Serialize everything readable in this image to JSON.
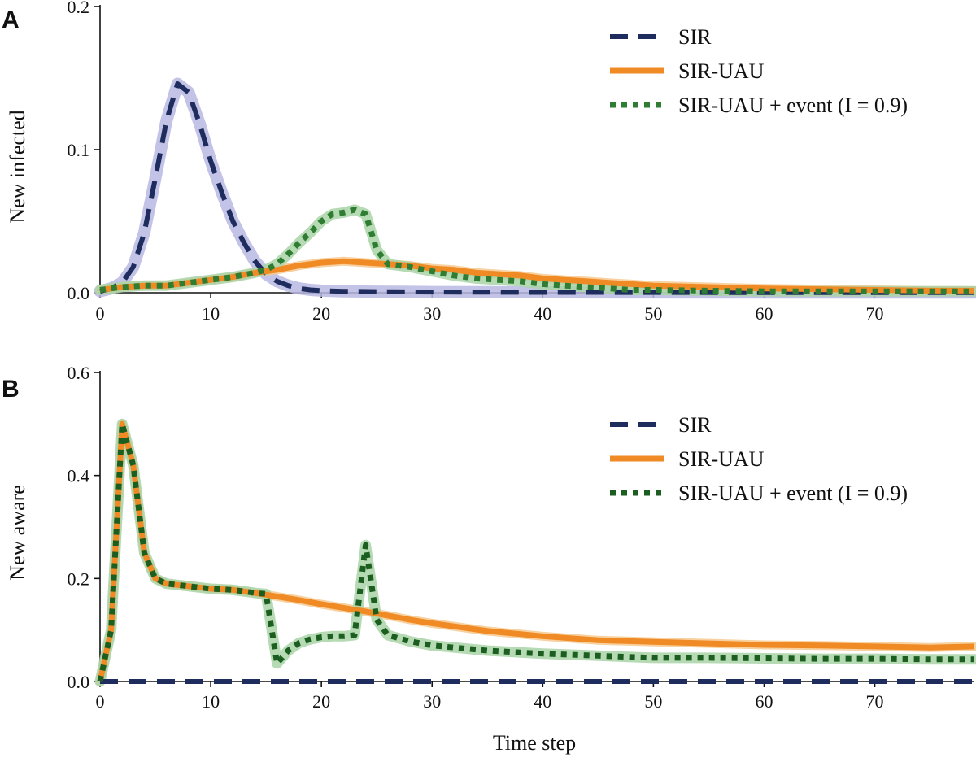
{
  "x_axis_title": "Time step",
  "colors": {
    "sir": "#1f2d5e",
    "sir_band": "#b9b9e3",
    "uau": "#f08a24",
    "uau_band": "#f6c98f",
    "event": "#2e7d32",
    "event_band": "#a9d4a7",
    "aware_event": "#1b5e20"
  },
  "chart_data": [
    {
      "panel": "A",
      "type": "line",
      "ylabel": "New infected",
      "xlim": [
        0,
        79
      ],
      "ylim": [
        0,
        0.2
      ],
      "xticks": [
        0,
        10,
        20,
        30,
        40,
        50,
        60,
        70
      ],
      "yticks": [
        0.0,
        0.1,
        0.2
      ],
      "ytick_labels": [
        "0.0",
        "0.1",
        "0.2"
      ],
      "legend": {
        "position": "top-right"
      },
      "series": [
        {
          "name": "SIR",
          "style": "dashed",
          "x": [
            0,
            1,
            2,
            3,
            4,
            5,
            6,
            7,
            8,
            9,
            10,
            11,
            12,
            13,
            14,
            15,
            16,
            17,
            18,
            19,
            20,
            22,
            25,
            30,
            35,
            40,
            50,
            60,
            70,
            79
          ],
          "y": [
            0.001,
            0.003,
            0.007,
            0.018,
            0.042,
            0.08,
            0.12,
            0.146,
            0.14,
            0.118,
            0.092,
            0.07,
            0.05,
            0.035,
            0.022,
            0.013,
            0.008,
            0.005,
            0.003,
            0.002,
            0.0015,
            0.001,
            0.0008,
            0.0005,
            0.0004,
            0.0003,
            0.0002,
            0.0001,
            0.0001,
            0.0001
          ]
        },
        {
          "name": "SIR-UAU",
          "style": "solid",
          "x": [
            0,
            2,
            4,
            6,
            8,
            10,
            12,
            14,
            16,
            18,
            20,
            22,
            24,
            26,
            28,
            30,
            32,
            34,
            36,
            38,
            40,
            42,
            44,
            46,
            48,
            50,
            55,
            60,
            65,
            70,
            75,
            79
          ],
          "y": [
            0.002,
            0.004,
            0.005,
            0.005,
            0.007,
            0.009,
            0.011,
            0.014,
            0.016,
            0.019,
            0.021,
            0.022,
            0.021,
            0.02,
            0.019,
            0.017,
            0.016,
            0.014,
            0.013,
            0.012,
            0.01,
            0.009,
            0.008,
            0.007,
            0.006,
            0.005,
            0.004,
            0.003,
            0.0025,
            0.002,
            0.0015,
            0.0015
          ]
        },
        {
          "name": "SIR-UAU + event (I = 0.9)",
          "style": "dotted",
          "x": [
            0,
            2,
            4,
            6,
            8,
            10,
            12,
            14,
            15,
            16,
            17,
            18,
            19,
            20,
            21,
            22,
            23,
            24,
            25,
            26,
            28,
            30,
            32,
            34,
            36,
            38,
            40,
            42,
            44,
            46,
            48,
            50,
            55,
            60,
            65,
            70,
            75,
            79
          ],
          "y": [
            0.002,
            0.004,
            0.005,
            0.005,
            0.007,
            0.009,
            0.011,
            0.014,
            0.016,
            0.02,
            0.027,
            0.035,
            0.042,
            0.05,
            0.055,
            0.056,
            0.058,
            0.055,
            0.03,
            0.02,
            0.018,
            0.015,
            0.012,
            0.01,
            0.009,
            0.008,
            0.006,
            0.005,
            0.004,
            0.003,
            0.002,
            0.002,
            0.0015,
            0.001,
            0.001,
            0.001,
            0.001,
            0.001
          ]
        }
      ]
    },
    {
      "panel": "B",
      "type": "line",
      "xlabel": "Time step",
      "ylabel": "New aware",
      "xlim": [
        0,
        79
      ],
      "ylim": [
        0,
        0.6
      ],
      "xticks": [
        0,
        10,
        20,
        30,
        40,
        50,
        60,
        70
      ],
      "yticks": [
        0.0,
        0.2,
        0.4,
        0.6
      ],
      "ytick_labels": [
        "0.0",
        "0.2",
        "0.4",
        "0.6"
      ],
      "legend": {
        "position": "top-right"
      },
      "series": [
        {
          "name": "SIR",
          "style": "dashed",
          "x": [
            0,
            79
          ],
          "y": [
            0,
            0
          ]
        },
        {
          "name": "SIR-UAU",
          "style": "solid",
          "x": [
            0,
            1,
            2,
            3,
            4,
            5,
            6,
            8,
            10,
            12,
            14,
            16,
            18,
            20,
            22,
            24,
            26,
            28,
            30,
            35,
            40,
            45,
            50,
            55,
            60,
            65,
            70,
            75,
            79
          ],
          "y": [
            0,
            0.1,
            0.5,
            0.42,
            0.25,
            0.2,
            0.19,
            0.185,
            0.18,
            0.178,
            0.172,
            0.165,
            0.158,
            0.15,
            0.143,
            0.136,
            0.128,
            0.12,
            0.113,
            0.098,
            0.088,
            0.08,
            0.077,
            0.074,
            0.071,
            0.07,
            0.068,
            0.066,
            0.068
          ]
        },
        {
          "name": "SIR-UAU + event (I = 0.9)",
          "style": "dotted",
          "x": [
            0,
            1,
            2,
            3,
            4,
            5,
            6,
            8,
            10,
            12,
            14,
            15,
            16,
            17,
            18,
            19,
            20,
            21,
            22,
            23,
            24,
            25,
            26,
            28,
            30,
            32,
            35,
            40,
            45,
            50,
            55,
            60,
            65,
            70,
            75,
            79
          ],
          "y": [
            0,
            0.1,
            0.5,
            0.42,
            0.25,
            0.2,
            0.19,
            0.185,
            0.18,
            0.178,
            0.172,
            0.17,
            0.035,
            0.06,
            0.075,
            0.082,
            0.086,
            0.088,
            0.088,
            0.09,
            0.265,
            0.12,
            0.09,
            0.078,
            0.07,
            0.066,
            0.06,
            0.054,
            0.05,
            0.046,
            0.046,
            0.045,
            0.044,
            0.044,
            0.043,
            0.043
          ]
        }
      ]
    }
  ]
}
